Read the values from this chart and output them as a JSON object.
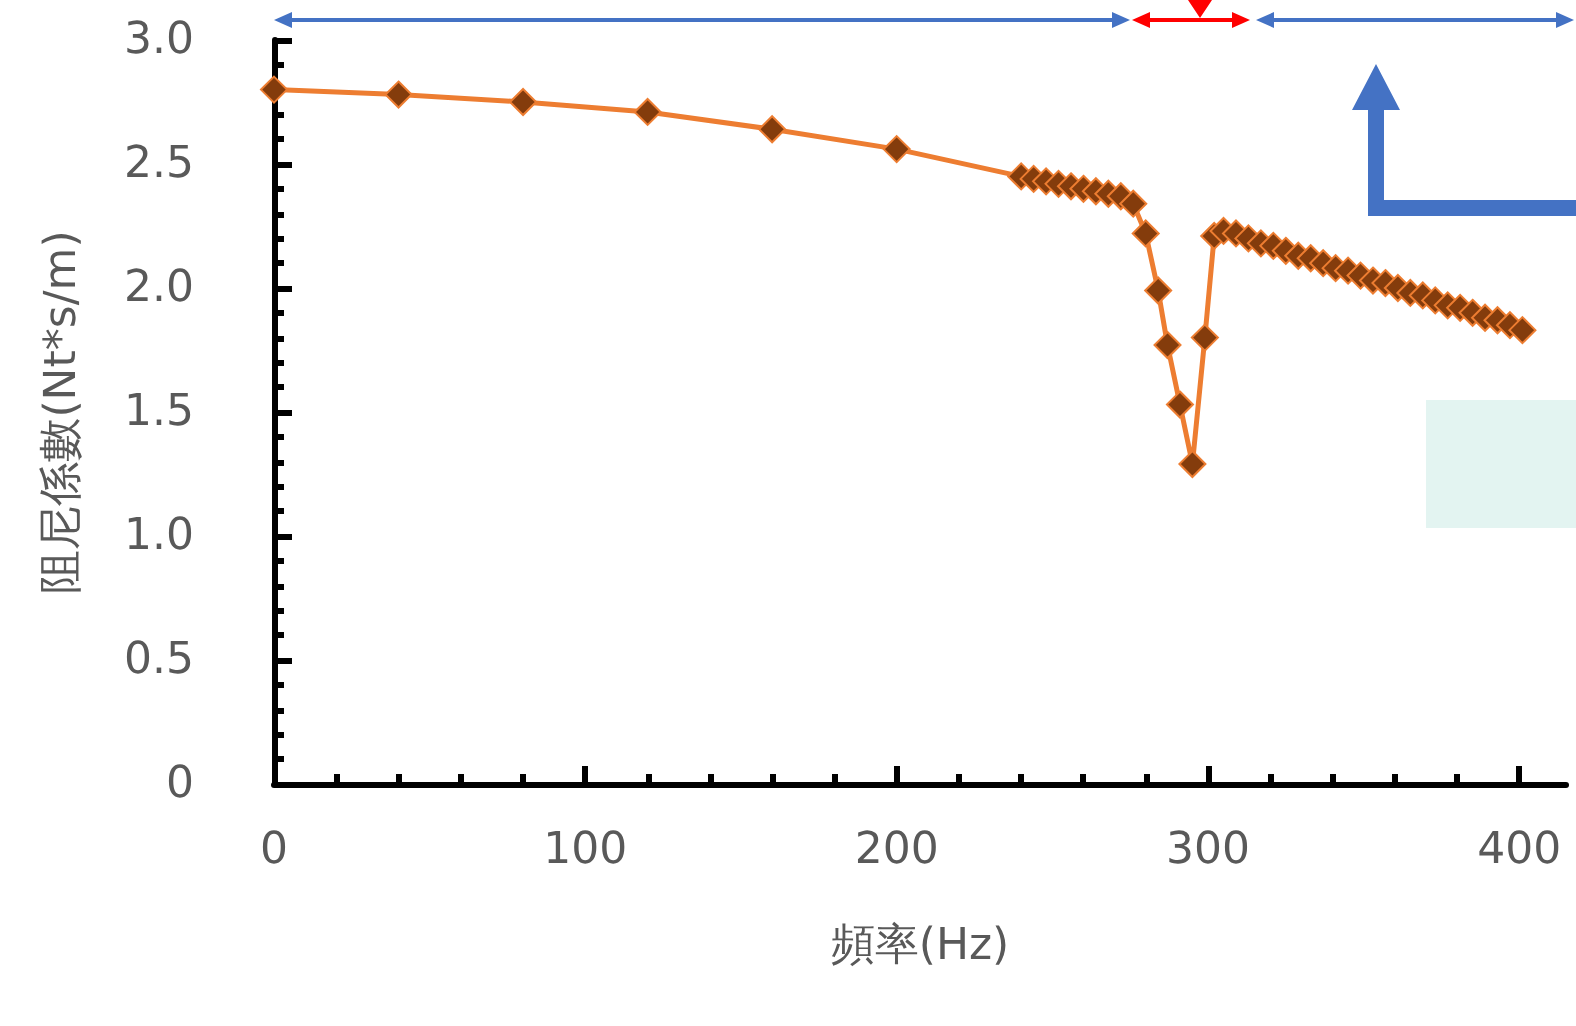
{
  "chart_data": {
    "type": "line",
    "xlabel": "頻率(Hz)",
    "ylabel": "阻尼係數(Nt*s/m)",
    "xlim": [
      0,
      415
    ],
    "xticks": [
      0,
      100,
      200,
      300,
      400
    ],
    "ylim": [
      0,
      3
    ],
    "yticks": [
      0,
      0.5,
      {
        "value": 1,
        "label": "1.0"
      },
      1.5,
      {
        "value": 2,
        "label": "2.0"
      },
      2.5,
      {
        "value": 3,
        "label": "3.0"
      }
    ],
    "grid": false,
    "marker": "diamond",
    "line_style": "solid",
    "series": [
      {
        "color": "#ed7d31",
        "x": [
          0,
          40,
          80,
          120,
          160,
          200,
          240,
          244,
          248,
          252,
          256,
          260,
          264,
          268,
          272,
          276,
          280,
          284,
          287,
          291,
          295,
          299,
          302,
          305,
          309,
          313,
          317,
          321,
          325,
          329,
          333,
          337,
          341,
          345,
          349,
          353,
          357,
          361,
          365,
          369,
          373,
          377,
          381,
          385,
          389,
          393,
          397,
          401
        ],
        "values": [
          2.8,
          2.78,
          2.75,
          2.71,
          2.64,
          2.56,
          2.45,
          2.44,
          2.43,
          2.42,
          2.41,
          2.4,
          2.39,
          2.38,
          2.37,
          2.34,
          2.22,
          1.99,
          1.77,
          1.53,
          1.29,
          1.8,
          2.21,
          2.23,
          2.22,
          2.2,
          2.18,
          2.17,
          2.15,
          2.13,
          2.12,
          2.1,
          2.08,
          2.07,
          2.05,
          2.03,
          2.02,
          2.0,
          1.98,
          1.97,
          1.95,
          1.93,
          1.92,
          1.9,
          1.88,
          1.87,
          1.85,
          1.83
        ]
      }
    ]
  }
}
